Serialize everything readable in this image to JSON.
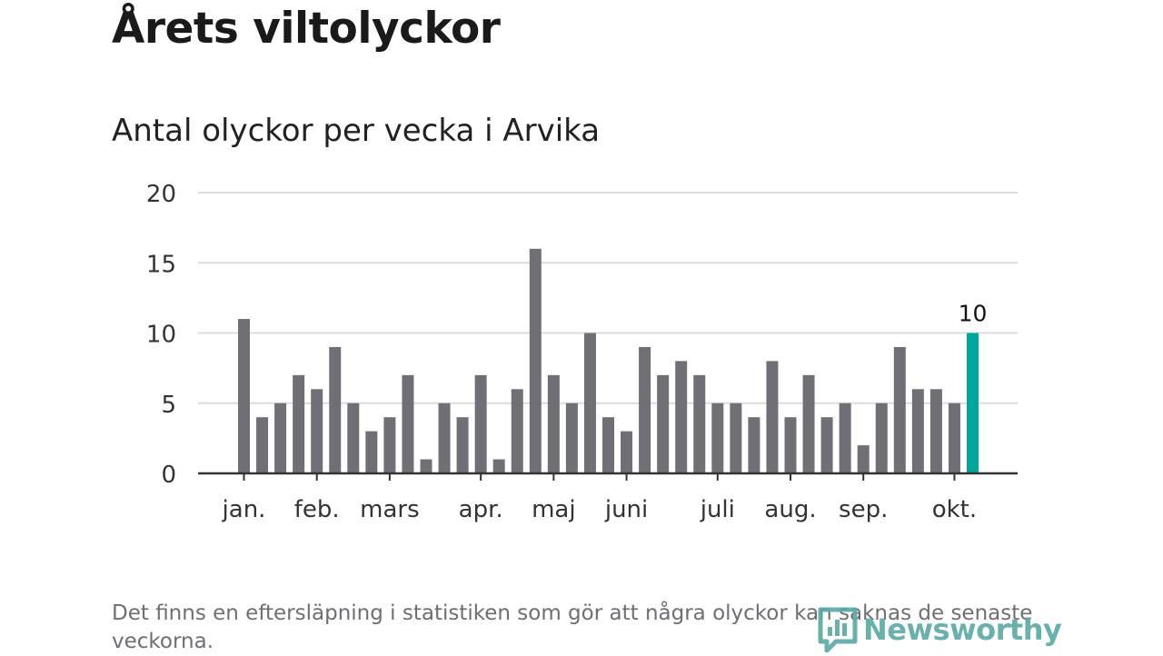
{
  "page": {
    "title": "Årets viltolyckor",
    "subtitle": "Antal olyckor per vecka i Arvika",
    "footnote": "Det finns en eftersläpning i statistiken som gör att några olyckor kan saknas de senaste veckorna.",
    "logo_text": "Newsworthy"
  },
  "colors": {
    "bar": "#706f74",
    "highlight": "#00a69b",
    "grid": "#dcdcdc",
    "axis": "#333333",
    "text": "#333333"
  },
  "chart_data": {
    "type": "bar",
    "title": "Antal olyckor per vecka i Arvika",
    "xlabel": "",
    "ylabel": "",
    "ylim": [
      0,
      20
    ],
    "yticks": [
      "0",
      "5",
      "10",
      "15",
      "20"
    ],
    "grid": true,
    "month_labels": [
      {
        "label": "jan.",
        "week": 1
      },
      {
        "label": "feb.",
        "week": 5
      },
      {
        "label": "mars",
        "week": 9
      },
      {
        "label": "apr.",
        "week": 14
      },
      {
        "label": "maj",
        "week": 18
      },
      {
        "label": "juni",
        "week": 22
      },
      {
        "label": "juli",
        "week": 27
      },
      {
        "label": "aug.",
        "week": 31
      },
      {
        "label": "sep.",
        "week": 35
      },
      {
        "label": "okt.",
        "week": 40
      }
    ],
    "values": [
      11,
      4,
      5,
      7,
      6,
      9,
      5,
      3,
      4,
      7,
      1,
      5,
      4,
      7,
      1,
      6,
      16,
      7,
      5,
      10,
      4,
      3,
      9,
      7,
      8,
      7,
      5,
      5,
      4,
      8,
      4,
      7,
      4,
      5,
      2,
      5,
      9,
      6,
      6,
      5,
      10
    ],
    "highlight_index": 40,
    "highlight_label": "10"
  }
}
